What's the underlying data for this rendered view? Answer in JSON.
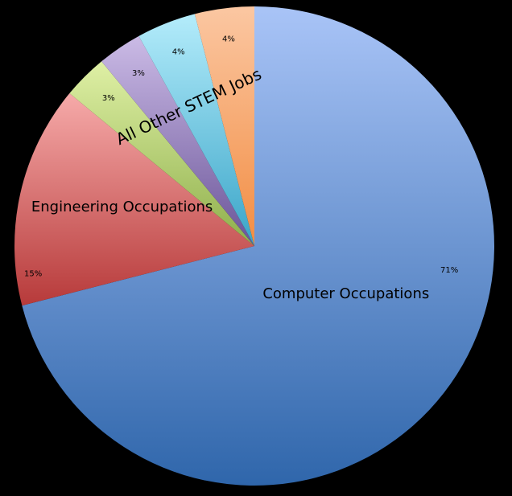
{
  "chart_data": {
    "type": "pie",
    "title": "",
    "slices": [
      {
        "value": 71,
        "label": "71%",
        "category": "Computer Occupations",
        "color_light": "#a9c4f7",
        "color_dark": "#2f66ab"
      },
      {
        "value": 15,
        "label": "15%",
        "category": "Engineering Occupations",
        "color_light": "#f6aaa9",
        "color_dark": "#b73a3a"
      },
      {
        "value": 3,
        "label": "3%",
        "category": "",
        "color_light": "#dff0a5",
        "color_dark": "#8eaf4b"
      },
      {
        "value": 3,
        "label": "3%",
        "category": "",
        "color_light": "#cbbbe6",
        "color_dark": "#6a5498"
      },
      {
        "value": 4,
        "label": "4%",
        "category": "",
        "color_light": "#b4ecfb",
        "color_dark": "#3aa5c8"
      },
      {
        "value": 4,
        "label": "4%",
        "category": "",
        "color_light": "#fbc7a2",
        "color_dark": "#f28d43"
      }
    ],
    "annotation": "All Other STEM Jobs",
    "legend": "none",
    "background": "#000000"
  }
}
